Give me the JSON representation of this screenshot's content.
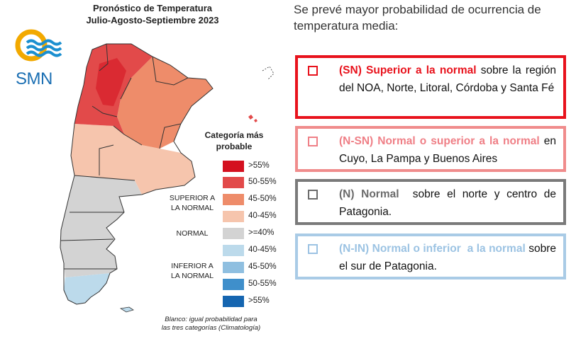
{
  "map": {
    "title_line1": "Pronóstico de Temperatura",
    "title_line2": "Julio-Agosto-Septiembre 2023",
    "logo_text": "SMN",
    "legend": {
      "heading_line1": "Categoría más",
      "heading_line2": "probable",
      "items": [
        {
          "label": ">55%",
          "color": "#d4101f"
        },
        {
          "label": "50-55%",
          "color": "#e24a4a"
        },
        {
          "label": "45-50%",
          "color": "#ee8c6a"
        },
        {
          "label": "40-45%",
          "color": "#f6c5ad"
        },
        {
          "label": ">=40%",
          "color": "#d3d3d3"
        },
        {
          "label": "40-45%",
          "color": "#bcdaeb"
        },
        {
          "label": "45-50%",
          "color": "#8fbfe0"
        },
        {
          "label": "50-55%",
          "color": "#3f8fcb"
        },
        {
          "label": ">55%",
          "color": "#1565b0"
        }
      ],
      "groups": {
        "superior_line1": "SUPERIOR A",
        "superior_line2": "LA NORMAL",
        "normal": "NORMAL",
        "inferior_line1": "INFERIOR A",
        "inferior_line2": "LA NORMAL"
      }
    },
    "footnote_line1": "Blanco: igual probabilidad para",
    "footnote_line2": "las tres categorías (Climatología)"
  },
  "panel": {
    "intro": "Se prevé mayor probabilidad de ocurrencia de temperatura media:",
    "boxes": [
      {
        "lead": "(SN) Superior a la normal",
        "rest": " sobre la región del NOA, Norte, Litoral, Córdoba y Santa Fé",
        "border_color": "#e8121c",
        "lead_color": "#e8121c"
      },
      {
        "lead": "(N-SN) Normal o superior a la normal",
        "rest": " en Cuyo, La Pampa y Buenos Aires",
        "border_color": "#f08c8c",
        "lead_color": "#ef7f86"
      },
      {
        "lead": "(N) Normal",
        "rest": "  sobre el norte y centro de Patagonia.",
        "border_color": "#7a7a7a",
        "lead_color": "#6b6b6b"
      },
      {
        "lead": "(N-IN) Normal o inferior  a la normal",
        "rest": " sobre el sur de Patagonia.",
        "border_color": "#a9cbe6",
        "lead_color": "#9cc3e3"
      }
    ]
  }
}
